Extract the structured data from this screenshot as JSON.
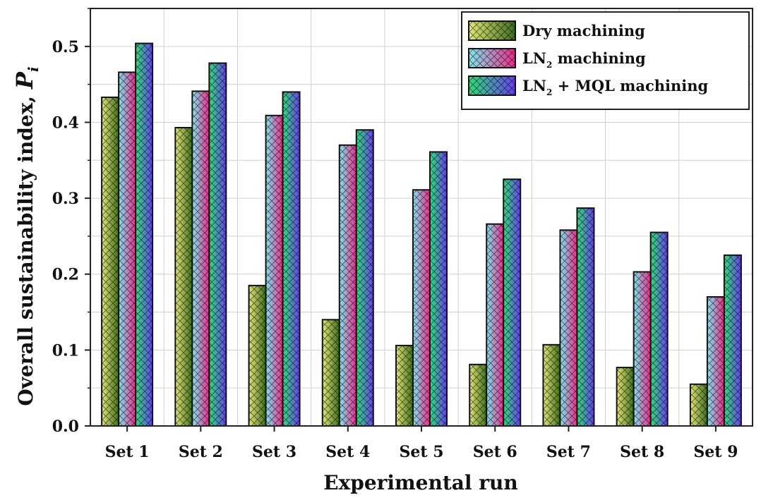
{
  "chart_data": {
    "type": "bar",
    "title": "",
    "xlabel": "Experimental run",
    "ylabel": "Overall sustainability index, ",
    "ylabel_symbol": "P",
    "ylabel_subscript": "i",
    "ylim": [
      0,
      0.55
    ],
    "yticks": [
      "0.0",
      "0.1",
      "0.2",
      "0.3",
      "0.4",
      "0.5"
    ],
    "ytick_values": [
      0,
      0.1,
      0.2,
      0.3,
      0.4,
      0.5
    ],
    "grid": true,
    "legend_position": "top-right",
    "categories": [
      "Set 1",
      "Set 2",
      "Set 3",
      "Set 4",
      "Set 5",
      "Set 6",
      "Set 7",
      "Set 8",
      "Set 9"
    ],
    "series": [
      {
        "name": "Dry machining",
        "legend_parts": [
          "Dry machining"
        ],
        "colors": [
          "#e4e878",
          "#3e6e1e"
        ],
        "values": [
          0.433,
          0.393,
          0.185,
          0.14,
          0.106,
          0.081,
          0.107,
          0.077,
          0.055
        ]
      },
      {
        "name": "LN2 machining",
        "legend_parts": [
          "LN",
          "2",
          " machining"
        ],
        "colors": [
          "#7fe8f2",
          "#ee2a88"
        ],
        "values": [
          0.466,
          0.441,
          0.409,
          0.37,
          0.311,
          0.266,
          0.258,
          0.203,
          0.17
        ]
      },
      {
        "name": "LN2 + MQL machining",
        "legend_parts": [
          "LN",
          "2",
          " + MQL machining"
        ],
        "colors": [
          "#2fe07a",
          "#6a3cf0"
        ],
        "values": [
          0.504,
          0.478,
          0.44,
          0.39,
          0.361,
          0.325,
          0.287,
          0.255,
          0.225
        ]
      }
    ]
  }
}
